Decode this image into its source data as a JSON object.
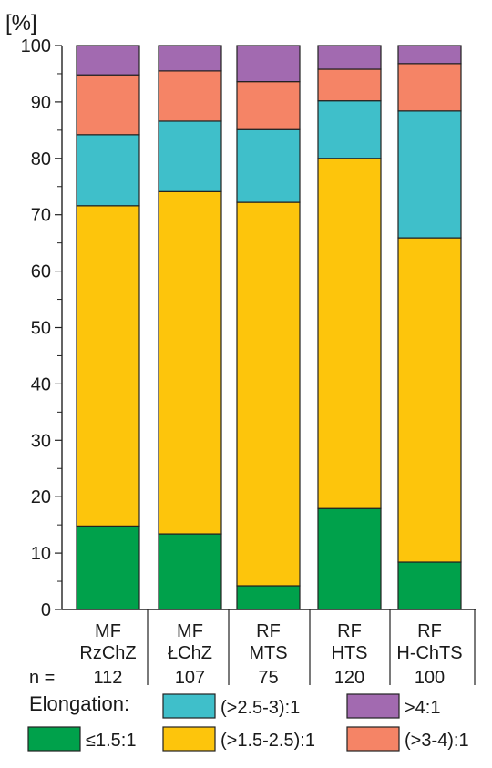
{
  "chart_data": {
    "type": "bar",
    "stacked": true,
    "ylabel": "[%]",
    "ylim": [
      0,
      100
    ],
    "yticks": [
      "0",
      "10",
      "20",
      "30",
      "40",
      "50",
      "60",
      "70",
      "80",
      "90",
      "100"
    ],
    "categories": [
      {
        "line1": "MF",
        "line2": "RzChZ",
        "n": "112"
      },
      {
        "line1": "MF",
        "line2": "ŁChZ",
        "n": "107"
      },
      {
        "line1": "RF",
        "line2": "MTS",
        "n": "75"
      },
      {
        "line1": "RF",
        "line2": "HTS",
        "n": "120"
      },
      {
        "line1": "RF",
        "line2": "H-ChTS",
        "n": "100"
      }
    ],
    "n_prefix": "n =",
    "series": [
      {
        "name": "≤1.5:1",
        "color": "#00a14b",
        "values": [
          14.8,
          13.4,
          4.2,
          17.9,
          8.4
        ]
      },
      {
        "name": "(>1.5-2.5):1",
        "color": "#fdc50c",
        "values": [
          56.8,
          60.7,
          68.0,
          62.1,
          57.5
        ]
      },
      {
        "name": "(>2.5-3):1",
        "color": "#3fbfca",
        "values": [
          12.6,
          12.5,
          12.9,
          10.2,
          22.5
        ]
      },
      {
        "name": "(>3-4):1",
        "color": "#f58466",
        "values": [
          10.6,
          8.9,
          8.5,
          5.6,
          8.4
        ]
      },
      {
        "name": ">4:1",
        "color": "#a26ab0",
        "values": [
          5.2,
          4.5,
          6.4,
          4.2,
          3.2
        ]
      }
    ],
    "legend": {
      "title": "Elongation:",
      "placement": "bottom"
    }
  }
}
